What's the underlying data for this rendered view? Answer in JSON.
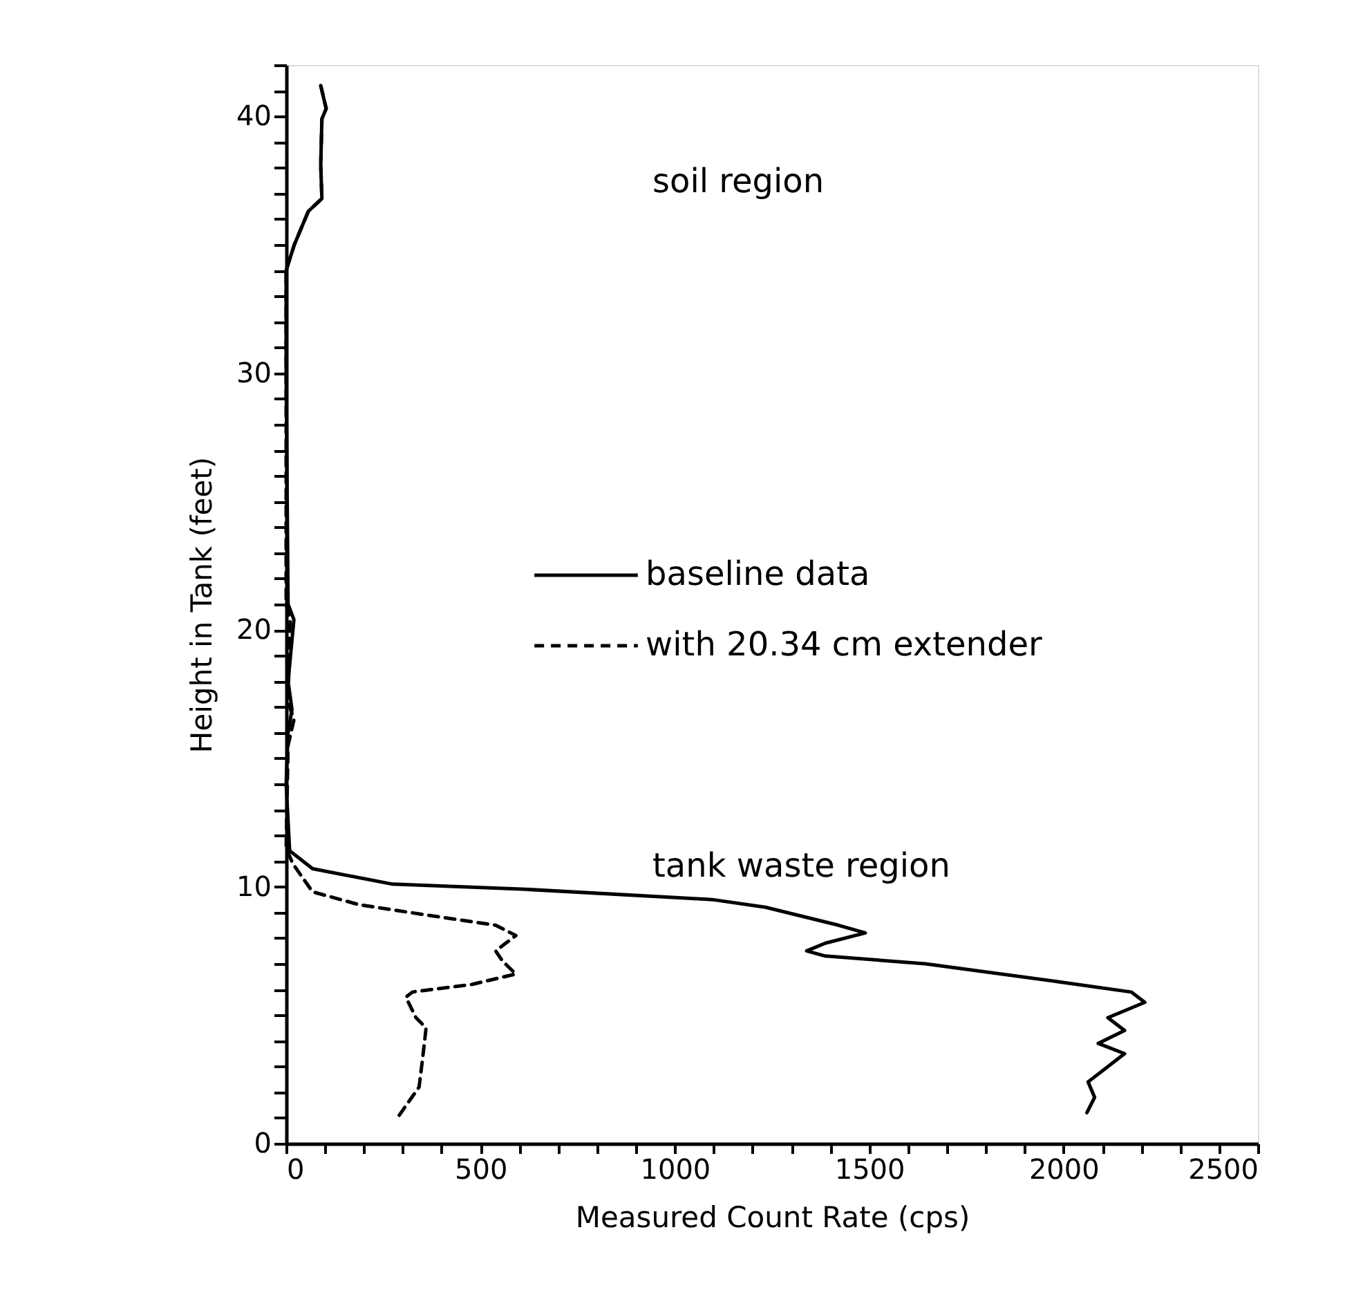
{
  "chart_data": {
    "type": "line",
    "xlabel": "Measured Count Rate (cps)",
    "ylabel": "Height in Tank (feet)",
    "xlim": [
      0,
      2500
    ],
    "ylim": [
      0,
      42
    ],
    "xticks": [
      0,
      {
        "value": 100,
        "label": null
      },
      {
        "value": 200,
        "label": null
      },
      {
        "value": 300,
        "label": null
      },
      {
        "value": 400,
        "label": null
      },
      500,
      {
        "value": 600,
        "label": null
      },
      {
        "value": 700,
        "label": null
      },
      {
        "value": 800,
        "label": null
      },
      {
        "value": 900,
        "label": null
      },
      1000,
      {
        "value": 1100,
        "label": null
      },
      {
        "value": 1200,
        "label": null
      },
      {
        "value": 1300,
        "label": null
      },
      {
        "value": 1400,
        "label": null
      },
      1500,
      {
        "value": 1600,
        "label": null
      },
      {
        "value": 1700,
        "label": null
      },
      {
        "value": 1800,
        "label": null
      },
      {
        "value": 1900,
        "label": null
      },
      2000,
      {
        "value": 2100,
        "label": null
      },
      {
        "value": 2200,
        "label": null
      },
      {
        "value": 2300,
        "label": null
      },
      {
        "value": 2400,
        "label": null
      },
      2500
    ],
    "yticks": [
      0,
      {
        "value": 1,
        "label": null
      },
      {
        "value": 2,
        "label": null
      },
      {
        "value": 3,
        "label": null
      },
      {
        "value": 4,
        "label": null
      },
      {
        "value": 5,
        "label": null
      },
      {
        "value": 6,
        "label": null
      },
      {
        "value": 7,
        "label": null
      },
      {
        "value": 8,
        "label": null
      },
      {
        "value": 9,
        "label": null
      },
      10,
      {
        "value": 11,
        "label": null
      },
      {
        "value": 12,
        "label": null
      },
      {
        "value": 13,
        "label": null
      },
      {
        "value": 14,
        "label": null
      },
      {
        "value": 15,
        "label": null
      },
      {
        "value": 16,
        "label": null
      },
      {
        "value": 17,
        "label": null
      },
      {
        "value": 18,
        "label": null
      },
      {
        "value": 19,
        "label": null
      },
      20,
      {
        "value": 21,
        "label": null
      },
      {
        "value": 22,
        "label": null
      },
      {
        "value": 23,
        "label": null
      },
      {
        "value": 24,
        "label": null
      },
      {
        "value": 25,
        "label": null
      },
      {
        "value": 26,
        "label": null
      },
      {
        "value": 27,
        "label": null
      },
      {
        "value": 28,
        "label": null
      },
      {
        "value": 29,
        "label": null
      },
      30,
      {
        "value": 31,
        "label": null
      },
      {
        "value": 32,
        "label": null
      },
      {
        "value": 33,
        "label": null
      },
      {
        "value": 34,
        "label": null
      },
      {
        "value": 35,
        "label": null
      },
      {
        "value": 36,
        "label": null
      },
      {
        "value": 37,
        "label": null
      },
      {
        "value": 38,
        "label": null
      },
      {
        "value": 39,
        "label": null
      },
      40,
      {
        "value": 41,
        "label": null
      },
      {
        "value": 42,
        "label": null
      }
    ],
    "grid": false,
    "legend": "right",
    "marker": "none",
    "series": [
      {
        "name": "baseline data",
        "color": "#000000",
        "line_style": "solid",
        "x": [
          2060,
          2080,
          2063,
          2106,
          2157,
          2089,
          2157,
          2114,
          2209,
          2174,
          1986,
          1644,
          1387,
          1339,
          1387,
          1490,
          1421,
          1233,
          1096,
          616,
          274,
          68,
          9,
          0,
          5,
          15,
          5,
          20,
          5,
          0,
          0,
          21,
          57,
          92,
          89,
          92,
          103,
          89
        ],
        "values": [
          1.2,
          1.8,
          2.4,
          2.9,
          3.5,
          3.9,
          4.4,
          4.9,
          5.5,
          5.9,
          6.3,
          7.0,
          7.3,
          7.5,
          7.8,
          8.2,
          8.5,
          9.2,
          9.5,
          9.9,
          10.1,
          10.7,
          11.4,
          14.0,
          16.0,
          16.9,
          18.0,
          20.4,
          21.0,
          30.0,
          34.0,
          35.0,
          36.3,
          36.8,
          38.1,
          39.9,
          40.3,
          41.2
        ]
      },
      {
        "name": "with 20.34 cm extender",
        "color": "#000000",
        "line_style": "dashed",
        "x": [
          291,
          342,
          351,
          360,
          334,
          308,
          325,
          479,
          591,
          557,
          539,
          591,
          539,
          360,
          188,
          68,
          17,
          0,
          5,
          20,
          5,
          10,
          0,
          0,
          21,
          57,
          92,
          89,
          92,
          103,
          89
        ],
        "values": [
          1.1,
          2.2,
          3.3,
          4.5,
          4.9,
          5.7,
          5.9,
          6.2,
          6.6,
          7.1,
          7.5,
          8.1,
          8.5,
          8.9,
          9.3,
          9.8,
          10.9,
          11.5,
          15.5,
          16.5,
          17.2,
          20.4,
          21.0,
          34.0,
          35.0,
          36.3,
          36.8,
          38.1,
          39.9,
          40.3,
          41.2
        ]
      }
    ],
    "annotations": [
      "soil region",
      "tank waste region"
    ]
  }
}
